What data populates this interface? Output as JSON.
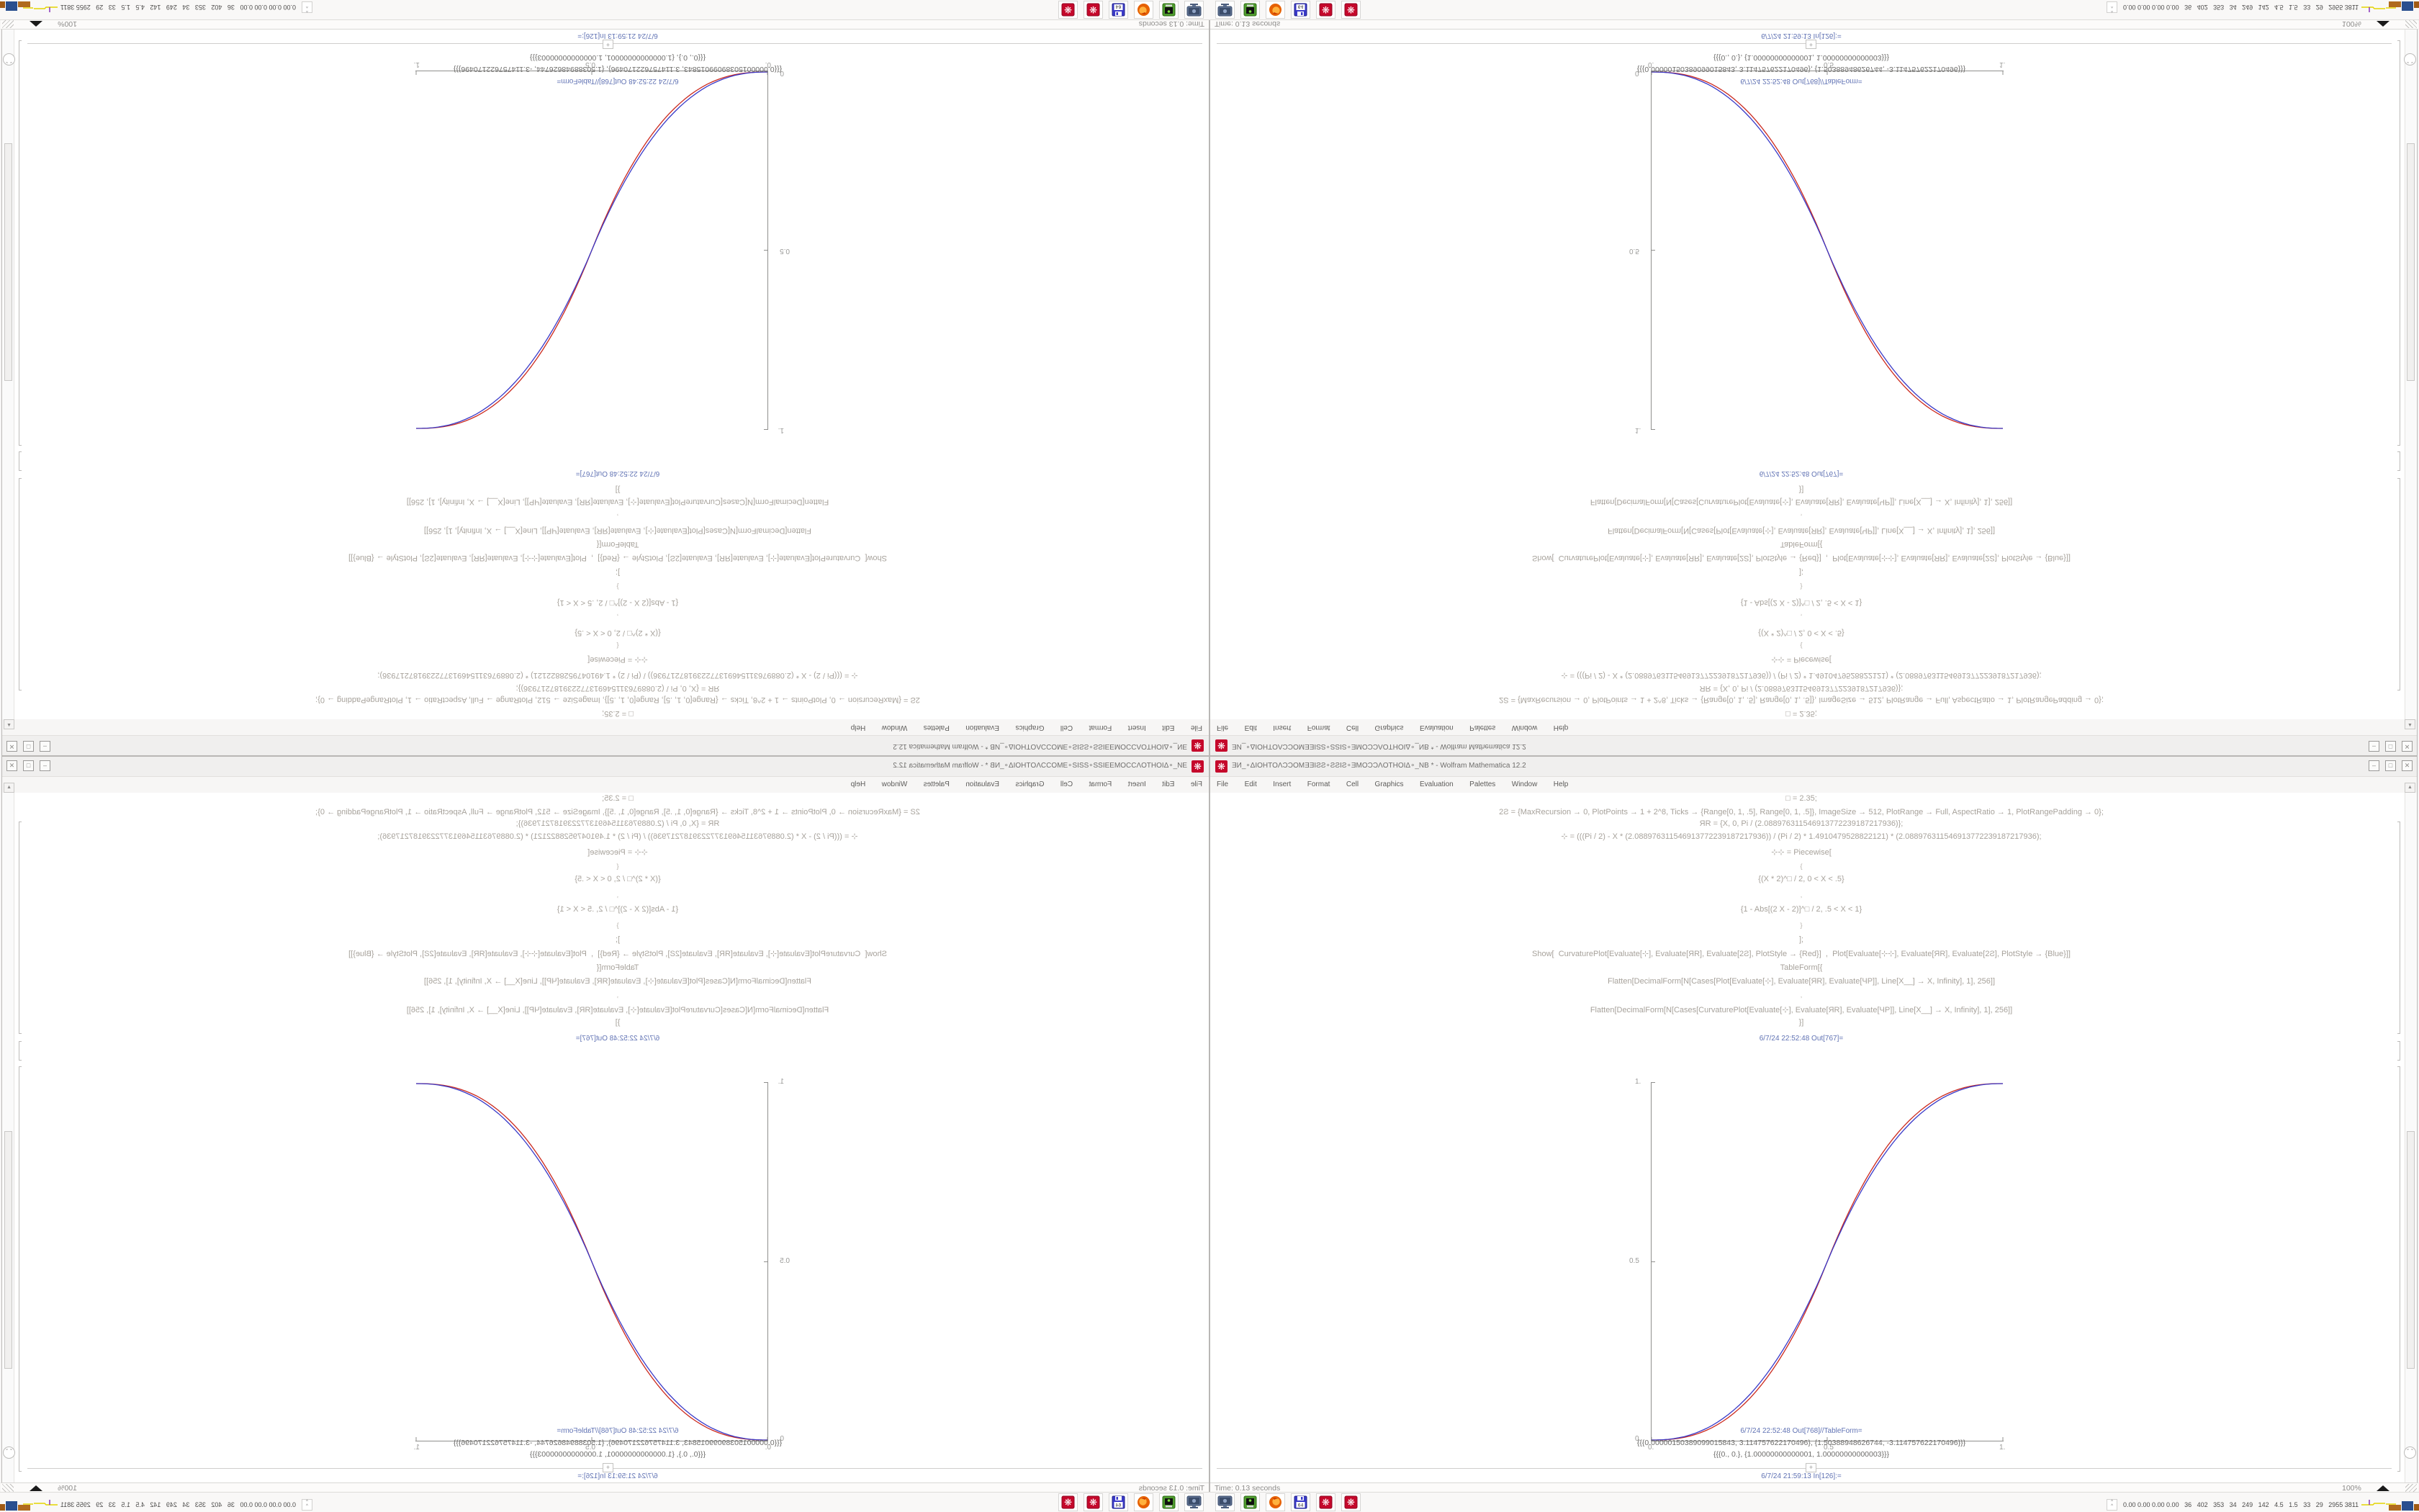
{
  "app": {
    "title": "ƎИ_∘ΔIOHTOΛƆƆOMƎƎIƧƧ∘ƧƧIƧ∘ƎMOƆƆΛOTHOIΔ∘_NB * - Wolfram Mathematica 12.2",
    "window_icon": "mathematica-spikey",
    "window_buttons": {
      "minimize": "–",
      "maximize": "□",
      "close": "✕"
    },
    "menu": [
      "File",
      "Edit",
      "Insert",
      "Format",
      "Cell",
      "Graphics",
      "Evaluation",
      "Palettes",
      "Window",
      "Help"
    ]
  },
  "notebook": {
    "cells": [
      "□ = 2.35;",
      "2Ƨ = {MaxRecursion → 0, PlotPoints → 1 + 2^8, Ticks → {Range[0, 1, .5], Range[0, 1, .5]}, ImageSize → 512, PlotRange → Full, AspectRatio → 1, PlotRangePadding → 0};",
      "ЯR = {X, 0, Pi / (2.088976311546913772239187217936)};",
      "⊹ = (((Pi / 2) - X * (2.088976311546913772239187217936)) / (Pi / 2) * 1.4910479528822121) * (2.088976311546913772239187217936);",
      "⊹⊹ = Piecewise[",
      "{",
      "{(X * 2)^□ / 2, 0 < X < .5}",
      ",",
      "{1 - Abs[(2 X - 2)]^□ / 2, .5 < X < 1}",
      "}",
      "];",
      "Show[  CurvaturePlot[Evaluate[⊹], Evaluate[ЯR], Evaluate[2Ƨ], PlotStyle → {Red}]  ,  Plot[Evaluate[⊹⊹], Evaluate[ЯR], Evaluate[2Ƨ], PlotStyle → {Blue}]]",
      "TableForm[{",
      "Flatten[DecimalForm[N[Cases[Plot[Evaluate[⊹], Evaluate[ЯR], Evaluate[ЧР]], Line[X__] → X, Infinity], 1], 256]]",
      ",",
      "Flatten[DecimalForm[N[Cases[CurvaturePlot[Evaluate[⊹], Evaluate[ЯR], Evaluate[ЧР]], Line[X__] → X, Infinity], 1], 256]]",
      "}]"
    ],
    "out1_label": "6/7/24 22:52:48 Out[767]=",
    "out2_label": "6/7/24 22:52:48 Out[768]//TableForm=",
    "out2_lines": [
      "{{{0.00000150389099015843, 3.114757622170496}, {1.50388948626744, -3.114757622170496}}}",
      "{{{0., 0.}, {1.00000000000001, 1.00000000000003}}}"
    ],
    "in_label": "6/7/24 21:59:13 In[126]:=",
    "insert_plus": "+",
    "status_left": "Time: 0.13 seconds",
    "zoom_level": "100%",
    "scroll_up_glyph": "▲",
    "elevator_glyph": "⌄⌄"
  },
  "chart_data": {
    "type": "line",
    "title": "",
    "xlabel": "",
    "ylabel": "",
    "x_range": [
      0,
      1
    ],
    "y_range": [
      0,
      1
    ],
    "x_ticks": [
      "0.",
      "0.5",
      "1."
    ],
    "y_ticks": [
      "0.",
      "0.5",
      "1."
    ],
    "grid": false,
    "legend_position": "none",
    "series": [
      {
        "name": "CurvaturePlot ⊹ (Red)",
        "color": "#cc2a1f",
        "model": "power_sigmoid",
        "exponent": 2.5,
        "key_points": [
          [
            0,
            0
          ],
          [
            0.25,
            0.09
          ],
          [
            0.5,
            0.5
          ],
          [
            0.75,
            0.91
          ],
          [
            1,
            1
          ]
        ]
      },
      {
        "name": "Plot ⊹⊹ (Blue)",
        "color": "#3a3ac8",
        "model": "power_sigmoid",
        "exponent": 2.35,
        "key_points": [
          [
            0,
            0
          ],
          [
            0.25,
            0.1
          ],
          [
            0.5,
            0.5
          ],
          [
            0.75,
            0.9
          ],
          [
            1,
            1
          ]
        ]
      }
    ]
  },
  "taskbar": {
    "icons": [
      {
        "name": "computer-monitor"
      },
      {
        "name": "green-device"
      },
      {
        "name": "firefox"
      },
      {
        "name": "floppy-64",
        "label": "64"
      },
      {
        "name": "mathematica"
      },
      {
        "name": "mathematica"
      }
    ],
    "tray_expander": "^\n^",
    "tray_numbers": "0.00 0.00 0.00 0.00   36   402   353   34   249   142   4.5   1.5   33   29   2955 3811"
  },
  "colors": {
    "curve_red": "#cc2a1f",
    "curve_blue": "#3a3ac8",
    "label_blue": "#6173b4",
    "code_grey": "#a7a29b",
    "mathematica_red": "#c5082b"
  }
}
